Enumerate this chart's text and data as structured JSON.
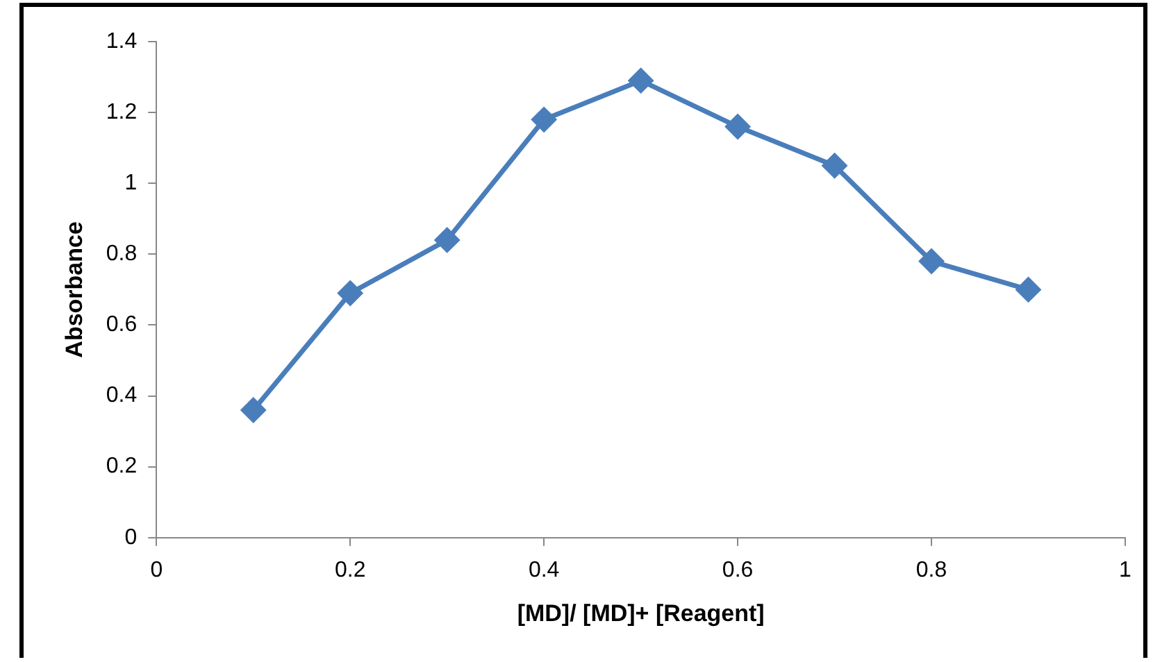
{
  "chart_data": {
    "type": "line",
    "xlabel": "[MD]/ [MD]+ [Reagent]",
    "ylabel": "Absorbance",
    "x": [
      0.1,
      0.2,
      0.3,
      0.4,
      0.5,
      0.6,
      0.7,
      0.8,
      0.9
    ],
    "series": [
      {
        "color": "#4a7ebb",
        "values": [
          0.36,
          0.69,
          0.84,
          1.18,
          1.29,
          1.16,
          1.05,
          0.78,
          0.7
        ]
      }
    ],
    "xlim": [
      0,
      1
    ],
    "xticks": [
      0,
      0.2,
      0.4,
      0.6,
      0.8,
      1
    ],
    "ylim": [
      0,
      1.4
    ],
    "yticks": [
      0,
      0.2,
      0.4,
      0.6,
      0.8,
      1,
      1.2,
      1.4
    ],
    "grid": false,
    "legend": false,
    "marker": "diamond",
    "line_style": "solid"
  }
}
